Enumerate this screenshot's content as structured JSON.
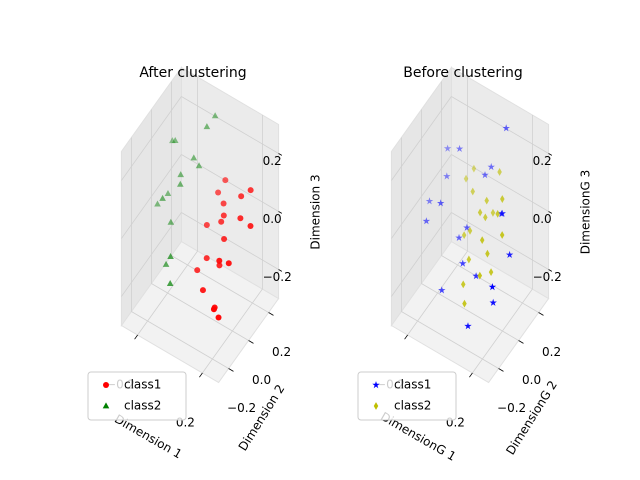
{
  "chart_data": [
    {
      "type": "scatter3d",
      "title": "After clustering",
      "xlabel": "Dimension 1",
      "ylabel": "Dimension 2",
      "zlabel": "Dimension 3",
      "xlim": [
        -0.3,
        0.3
      ],
      "ylim": [
        -0.3,
        0.3
      ],
      "zlim": [
        -0.3,
        0.3
      ],
      "xticks": [
        {
          "value": -0.2,
          "label": "−0.2"
        },
        0.2
      ],
      "yticks": [
        {
          "value": -0.2,
          "label": "−0.2"
        },
        {
          "value": 0,
          "label": "0.0"
        },
        0.2
      ],
      "zticks": [
        {
          "value": -0.2,
          "label": "−0.2"
        },
        {
          "value": 0,
          "label": "0.0"
        },
        0.2
      ],
      "legend": "lower left",
      "series": [
        {
          "name": "class1",
          "color": "#ff0000",
          "marker": "circle",
          "x": [
            0.1,
            0.15,
            0.05,
            0.12,
            0.2,
            0.08,
            0.18,
            0.03,
            0.14,
            0.22,
            0.06,
            0.11,
            0.16,
            0.09,
            0.25,
            0.02,
            0.13,
            0.19,
            0.07,
            0.17
          ],
          "y": [
            0.05,
            -0.05,
            0.1,
            0.0,
            0.08,
            -0.1,
            0.12,
            0.02,
            -0.08,
            0.15,
            -0.03,
            0.06,
            -0.12,
            0.09,
            0.1,
            -0.06,
            0.03,
            -0.02,
            0.14,
            -0.09
          ],
          "z": [
            0.02,
            -0.05,
            0.08,
            -0.1,
            0.05,
            -0.15,
            0.1,
            0.0,
            -0.2,
            0.12,
            -0.08,
            0.04,
            -0.18,
            0.06,
            0.03,
            -0.12,
            -0.02,
            -0.06,
            0.11,
            -0.22
          ]
        },
        {
          "name": "class2",
          "color": "#008000",
          "marker": "triangle",
          "x": [
            -0.15,
            -0.2,
            -0.1,
            -0.18,
            -0.22,
            -0.12,
            -0.05,
            -0.25,
            -0.08,
            -0.16,
            -0.14,
            -0.19,
            -0.03,
            -0.11,
            -0.21
          ],
          "y": [
            0.05,
            -0.05,
            0.1,
            0.0,
            0.08,
            -0.1,
            0.15,
            -0.02,
            0.12,
            -0.08,
            0.03,
            0.06,
            0.2,
            -0.12,
            0.02
          ],
          "z": [
            0.1,
            0.05,
            0.15,
            -0.05,
            0.18,
            -0.1,
            0.25,
            0.0,
            0.12,
            -0.15,
            0.08,
            0.2,
            0.27,
            -0.18,
            0.03
          ]
        }
      ]
    },
    {
      "type": "scatter3d",
      "title": "Before clustering",
      "xlabel": "DimensionG 1",
      "ylabel": "DimensionG 2",
      "zlabel": "DimensionG 3",
      "xlim": [
        -0.3,
        0.3
      ],
      "ylim": [
        -0.3,
        0.3
      ],
      "zlim": [
        -0.3,
        0.3
      ],
      "xticks": [
        {
          "value": -0.2,
          "label": "−0.2"
        },
        0.2
      ],
      "yticks": [
        {
          "value": -0.2,
          "label": "−0.2"
        },
        {
          "value": 0,
          "label": "0.0"
        },
        0.2
      ],
      "zticks": [
        {
          "value": -0.2,
          "label": "−0.2"
        },
        {
          "value": 0,
          "label": "0.0"
        },
        0.2
      ],
      "legend": "lower left",
      "series": [
        {
          "name": "class1",
          "color": "#0000ff",
          "marker": "star",
          "x": [
            -0.2,
            -0.15,
            0.1,
            -0.05,
            0.2,
            -0.25,
            0.0,
            0.15,
            -0.1,
            0.05,
            -0.18,
            0.12,
            -0.08,
            0.18,
            -0.22,
            0.02,
            0.08,
            -0.12,
            0.22,
            -0.02
          ],
          "y": [
            0.1,
            -0.05,
            0.2,
            0.05,
            -0.1,
            0.0,
            0.15,
            0.08,
            -0.12,
            -0.02,
            0.06,
            0.12,
            0.02,
            -0.06,
            -0.08,
            0.18,
            -0.15,
            0.09,
            0.04,
            -0.04
          ],
          "z": [
            0.15,
            0.05,
            0.27,
            -0.05,
            -0.1,
            0.0,
            0.1,
            0.05,
            -0.2,
            -0.15,
            0.08,
            0.02,
            -0.08,
            -0.18,
            -0.02,
            0.12,
            -0.25,
            0.18,
            -0.05,
            -0.12
          ]
        },
        {
          "name": "class2",
          "color": "#bfbf00",
          "marker": "thin-diamond",
          "x": [
            0.05,
            0.1,
            -0.02,
            0.08,
            0.12,
            0.0,
            0.15,
            0.03,
            0.07,
            -0.05,
            0.11,
            0.14,
            0.02,
            0.09,
            -0.03,
            0.06,
            0.13,
            0.04,
            0.18,
            -0.08
          ],
          "y": [
            0.02,
            -0.04,
            0.06,
            0.1,
            -0.02,
            0.0,
            0.08,
            -0.06,
            0.04,
            0.12,
            -0.08,
            0.05,
            -0.1,
            0.15,
            -0.01,
            0.07,
            0.0,
            -0.12,
            0.03,
            0.09
          ],
          "z": [
            0.05,
            0.0,
            0.08,
            0.02,
            -0.05,
            -0.02,
            0.1,
            -0.08,
            0.03,
            0.12,
            -0.1,
            0.06,
            -0.15,
            0.14,
            -0.04,
            0.07,
            -0.12,
            -0.2,
            0.01,
            0.09
          ]
        }
      ]
    }
  ]
}
